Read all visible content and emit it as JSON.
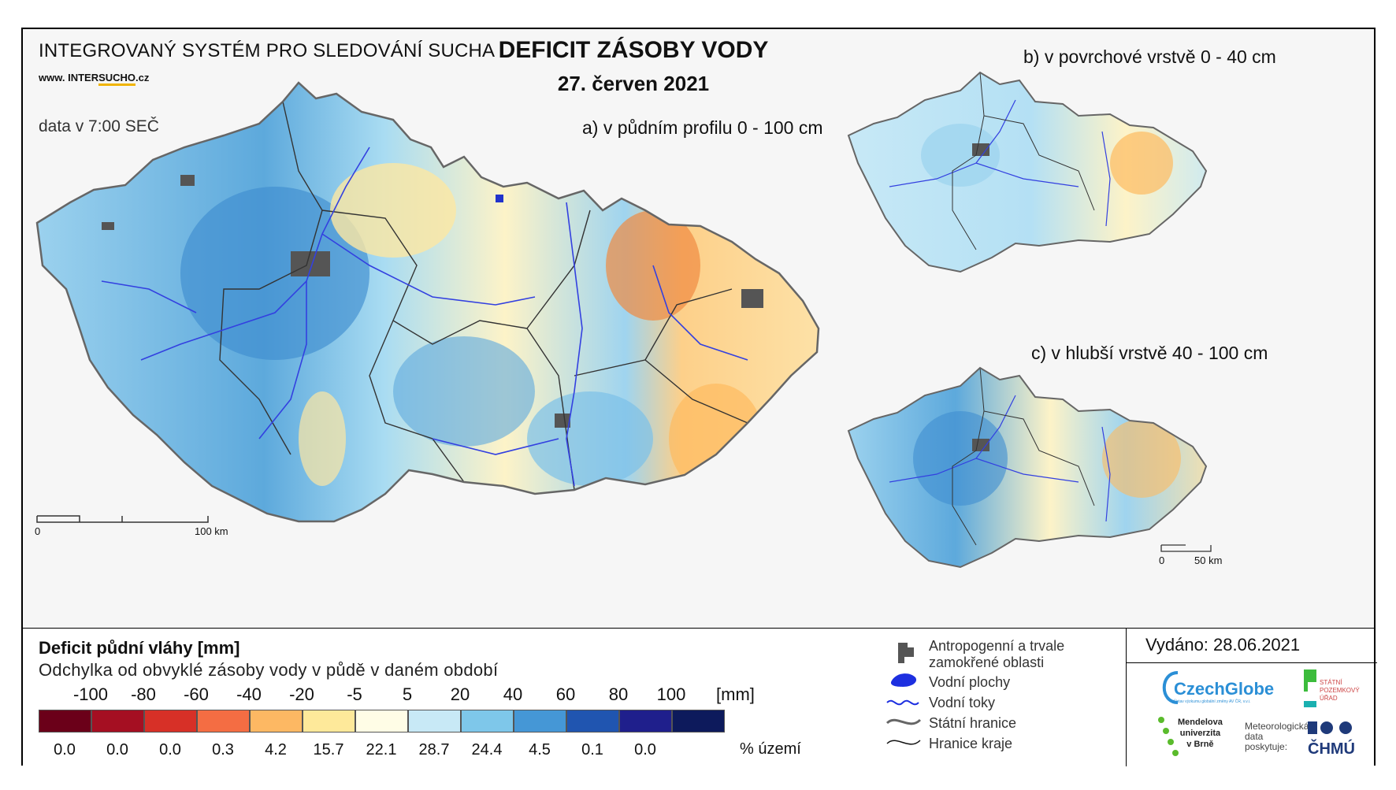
{
  "header": {
    "system_title": "INTEGROVANÝ SYSTÉM PRO SLEDOVÁNÍ SUCHA",
    "website_pre": "www. INTER",
    "website_accent": "SUCHO",
    "website_post": ".cz",
    "data_time": "data v 7:00 SEČ",
    "title": "DEFICIT ZÁSOBY VODY",
    "date": "27. červen 2021"
  },
  "maps": {
    "main_label": "a) v půdním profilu 0 - 100 cm",
    "top_label": "b) v povrchové vrstvě 0 - 40 cm",
    "bottom_label": "c) v hlubší vrstvě 40 - 100 cm",
    "main_scale": {
      "start": "0",
      "end": "100 km"
    },
    "small_scale": {
      "start": "0",
      "end": "50 km"
    }
  },
  "legend": {
    "title": "Deficit půdní vláhy  [mm]",
    "subtitle": "Odchylka od obvyklé zásoby vody v půdě v daném období",
    "unit_mm": "[mm]",
    "unit_pct": "% území",
    "ticks": [
      "-100",
      "-80",
      "-60",
      "-40",
      "-20",
      "-5",
      "5",
      "20",
      "40",
      "60",
      "80",
      "100"
    ],
    "colors": [
      "#6b0019",
      "#a50f22",
      "#d73027",
      "#f46d43",
      "#fdb863",
      "#fee99a",
      "#fffde6",
      "#c8e9f6",
      "#7ec7ea",
      "#4597d6",
      "#2055b0",
      "#1f1f8c",
      "#0d1a5c"
    ],
    "percentages": [
      "0.0",
      "0.0",
      "0.0",
      "0.3",
      "4.2",
      "15.7",
      "22.1",
      "28.7",
      "24.4",
      "4.5",
      "0.1",
      "0.0"
    ],
    "symbols": {
      "urban": "Antropogenní a trvale zamokřené oblasti",
      "water_bodies": "Vodní plochy",
      "rivers": "Vodní toky",
      "state_border": "Státní hranice",
      "region_border": "Hranice kraje"
    }
  },
  "footer": {
    "issued": "Vydáno: 28.06.2021",
    "logos": {
      "czechglobe": "CzechGlobe",
      "czechglobe_sub": "Ústav výzkumu globální změny AV ČR, v.v.i.",
      "spu": [
        "STÁTNÍ",
        "POZEMKOVÝ",
        "ÚŘAD"
      ],
      "mendel": [
        "Mendelova",
        "univerzita",
        "v Brně"
      ],
      "meteo": [
        "Meteorologická",
        "data",
        "poskytuje:"
      ],
      "chmu": "ČHMÚ"
    }
  }
}
